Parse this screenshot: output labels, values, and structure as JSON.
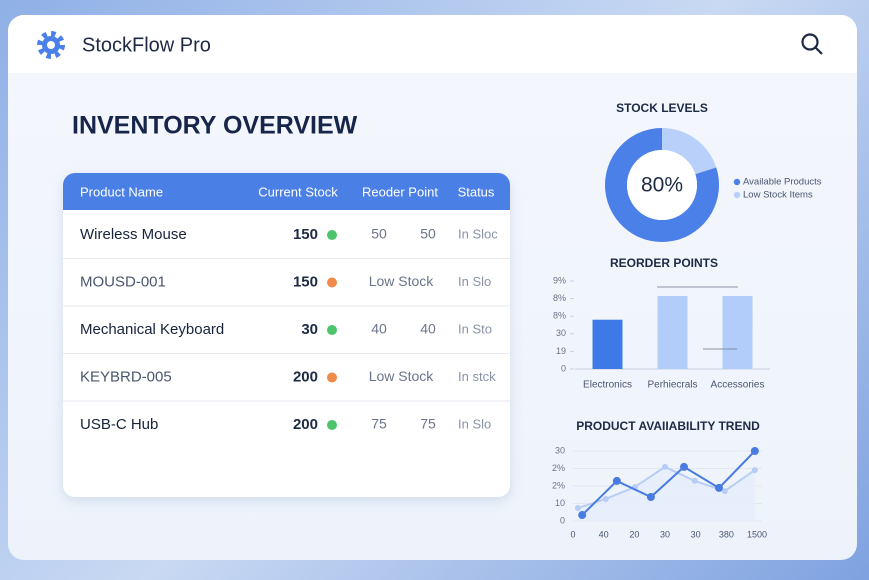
{
  "header": {
    "title": "StockFlow Pro"
  },
  "heading": "INVENTORY OVERVIEW",
  "table": {
    "columns": [
      "Product Name",
      "Current Stock",
      "Reoder Point",
      "Status"
    ],
    "rows": [
      {
        "name": "Wireless Mouse",
        "stock": 150,
        "dot_color": "#4cc46a",
        "reorder": [
          50,
          50
        ],
        "status": "In Sloc"
      },
      {
        "name": "MOUSD-001",
        "stock": 150,
        "dot_color": "#f08a4b",
        "reorder": [
          "Low Stock"
        ],
        "status": "In Slo"
      },
      {
        "name": "Mechanical Keyboard",
        "stock": 30,
        "dot_color": "#4cc46a",
        "reorder": [
          40,
          40
        ],
        "status": "In Sto"
      },
      {
        "name": "KEYBRD-005",
        "stock": 200,
        "dot_color": "#f08a4b",
        "reorder": [
          "Low Stock"
        ],
        "status": "In stck"
      },
      {
        "name": "USB-C Hub",
        "stock": 200,
        "dot_color": "#4cc46a",
        "reorder": [
          75,
          75
        ],
        "status": "In Slo"
      }
    ]
  },
  "charts": [
    {
      "type": "donut",
      "title": "STOCK LEVELS",
      "categories": [
        "Available Products",
        "Low Stock Items"
      ],
      "values": [
        80,
        20
      ],
      "colors": [
        "#4a80e8",
        "#b9d0fb"
      ],
      "center": {
        "value": 80,
        "label": "80%"
      }
    },
    {
      "type": "bar",
      "title": "REORDER POINTS",
      "categories": [
        "Electronics",
        "Perhiecrals",
        "Accessories"
      ],
      "values": [
        28,
        41.5,
        41.5
      ],
      "colors": [
        "#3d7ae8",
        "#b3cdfa",
        "#b3cdfa"
      ],
      "ylim": [
        0,
        50
      ],
      "yticks": [
        0,
        {
          "value": 10,
          "label": "19"
        },
        {
          "value": 20,
          "label": "30"
        },
        {
          "value": 30,
          "label": "8%"
        },
        {
          "value": 40,
          "label": "8%"
        },
        {
          "value": 50,
          "label": "9%"
        }
      ]
    },
    {
      "type": "line",
      "title": "PRODUCT AVAIIABILITY TREND",
      "xlim": [
        0,
        6
      ],
      "xticks": [
        0,
        {
          "value": 1,
          "label": "40"
        },
        {
          "value": 2,
          "label": "20"
        },
        {
          "value": 3,
          "label": "30"
        },
        {
          "value": 4,
          "label": "30"
        },
        {
          "value": 5,
          "label": "380"
        },
        {
          "value": 6,
          "label": "1500"
        }
      ],
      "ylim": [
        0,
        40
      ],
      "yticks": [
        0,
        10,
        {
          "value": 20,
          "label": "2%"
        },
        {
          "value": 30,
          "label": "2%"
        },
        {
          "value": 40,
          "label": "30"
        }
      ],
      "series": [
        {
          "color": "#b8cdf5",
          "fill": "#e6eefc",
          "x": [
            0.16,
            1.07,
            2.02,
            3.0,
            3.97,
            4.95,
            5.93
          ],
          "values": [
            7.4,
            12.6,
            19.4,
            30.9,
            22.9,
            17.1,
            29.1
          ]
        },
        {
          "color": "#4a7be0",
          "x": [
            0.3,
            1.43,
            2.54,
            3.62,
            4.76,
            5.93
          ],
          "values": [
            3.4,
            22.9,
            13.7,
            30.9,
            18.9,
            40
          ]
        }
      ]
    }
  ]
}
